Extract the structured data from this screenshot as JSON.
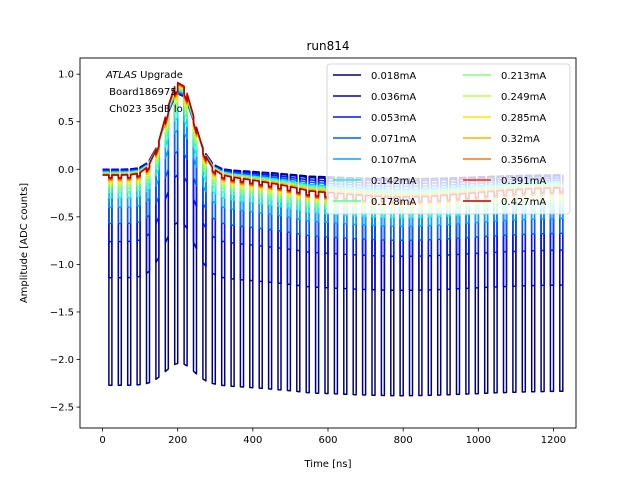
{
  "chart_data": {
    "type": "line",
    "title": "run814",
    "xlabel": "Time [ns]",
    "ylabel": "Amplitude [ADC counts]",
    "xlim": [
      -60,
      1260
    ],
    "ylim": [
      -2.72,
      1.17
    ],
    "xticks": [
      0,
      200,
      400,
      600,
      800,
      1000,
      1200
    ],
    "yticks": [
      1.0,
      0.5,
      0.0,
      -0.5,
      -1.0,
      -1.5,
      -2.0,
      -2.5
    ],
    "xtick_labels": [
      "0",
      "200",
      "400",
      "600",
      "800",
      "1000",
      "1200"
    ],
    "ytick_labels": [
      "1.0",
      "0.5",
      "0.0",
      "−0.5",
      "−1.0",
      "−1.5",
      "−2.0",
      "−2.5"
    ],
    "annotation": {
      "italic": "ATLAS",
      "rest": " Upgrade",
      "line2": " Board186975",
      "line3": " Ch023 35dB lo"
    },
    "legend_position": "upper-right",
    "legend_columns": 2,
    "pulse": {
      "period_ns": 25,
      "low_fraction": 0.32,
      "peak_time_ns": 205,
      "dip_time_ns": 800
    },
    "series": [
      {
        "name": "0.018mA",
        "color": "#00007f",
        "peak": 0.82,
        "baseline": 0.0,
        "low": -2.27,
        "tail": -0.1
      },
      {
        "name": "0.036mA",
        "color": "#0000c8",
        "peak": 0.8,
        "baseline": 0.0,
        "low": -1.14,
        "tail": -0.12
      },
      {
        "name": "0.053mA",
        "color": "#0014ff",
        "peak": 0.82,
        "baseline": -0.01,
        "low": -0.76,
        "tail": -0.14
      },
      {
        "name": "0.071mA",
        "color": "#005cff",
        "peak": 0.84,
        "baseline": -0.02,
        "low": -0.57,
        "tail": -0.16
      },
      {
        "name": "0.107mA",
        "color": "#00a8ff",
        "peak": 0.86,
        "baseline": -0.03,
        "low": -0.4,
        "tail": -0.18
      },
      {
        "name": "0.142mA",
        "color": "#1cf4d4",
        "peak": 0.88,
        "baseline": -0.03,
        "low": -0.3,
        "tail": -0.19
      },
      {
        "name": "0.178mA",
        "color": "#54ffa0",
        "peak": 0.9,
        "baseline": -0.04,
        "low": -0.24,
        "tail": -0.2
      },
      {
        "name": "0.213mA",
        "color": "#7dff7a",
        "peak": 0.92,
        "baseline": -0.04,
        "low": -0.2,
        "tail": -0.21
      },
      {
        "name": "0.249mA",
        "color": "#b8ff3e",
        "peak": 0.93,
        "baseline": -0.05,
        "low": -0.17,
        "tail": -0.21
      },
      {
        "name": "0.285mA",
        "color": "#ffe500",
        "peak": 0.94,
        "baseline": -0.05,
        "low": -0.14,
        "tail": -0.22
      },
      {
        "name": "0.32mA",
        "color": "#ffb000",
        "peak": 0.95,
        "baseline": -0.05,
        "low": -0.12,
        "tail": -0.22
      },
      {
        "name": "0.356mA",
        "color": "#ff7700",
        "peak": 0.96,
        "baseline": -0.06,
        "low": -0.11,
        "tail": -0.23
      },
      {
        "name": "0.391mA",
        "color": "#ff2900",
        "peak": 0.97,
        "baseline": -0.06,
        "low": -0.1,
        "tail": -0.23
      },
      {
        "name": "0.427mA",
        "color": "#b50000",
        "peak": 0.98,
        "baseline": -0.06,
        "low": -0.09,
        "tail": -0.23
      }
    ]
  }
}
